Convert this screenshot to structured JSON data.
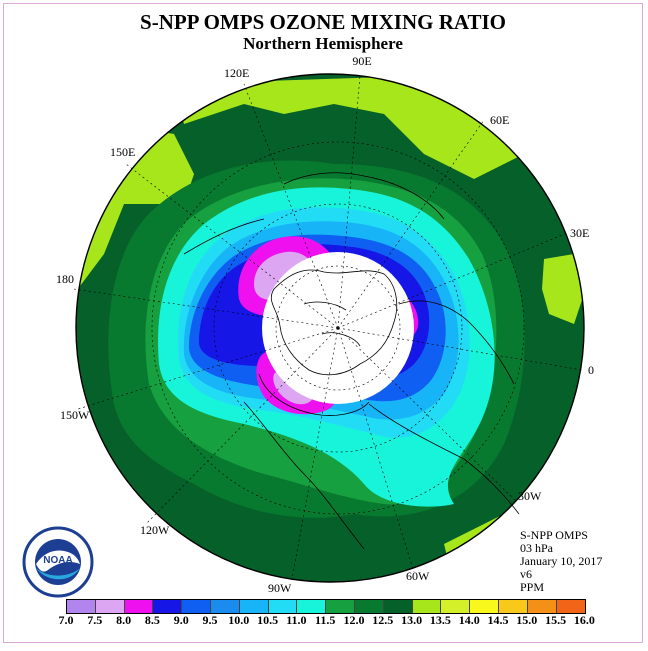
{
  "title": "S-NPP OMPS OZONE MIXING RATIO",
  "subtitle": "Northern Hemisphere",
  "longitude_labels": {
    "e90": "90E",
    "e60": "60E",
    "e30": "30E",
    "zero": "0",
    "w30": "30W",
    "w60": "60W",
    "w90": "90W",
    "w120": "120W",
    "w150": "150W",
    "d180": "180",
    "e150": "150E",
    "e120": "120E"
  },
  "info": {
    "instrument": "S-NPP OMPS",
    "level": "03 hPa",
    "date": "January 10, 2017",
    "version": "v6",
    "units": "PPM"
  },
  "logo": {
    "text": "NOAA",
    "icon": "noaa-logo"
  },
  "colorbar": {
    "ticks": [
      "7.0",
      "7.5",
      "8.0",
      "8.5",
      "9.0",
      "9.5",
      "10.0",
      "10.5",
      "11.0",
      "11.5",
      "12.0",
      "12.5",
      "13.0",
      "13.5",
      "14.0",
      "14.5",
      "15.0",
      "15.5",
      "16.0"
    ],
    "colors": [
      "#b284ee",
      "#dca6f2",
      "#ee10ee",
      "#1616e6",
      "#0f5ff2",
      "#1a8cf0",
      "#18b4f8",
      "#22dcf6",
      "#18f4da",
      "#16a040",
      "#087a30",
      "#05602a",
      "#a8e61c",
      "#d4f028",
      "#f8f81c",
      "#f8c81a",
      "#f49018",
      "#f26418",
      "#f01818",
      "#8a5030"
    ]
  },
  "map": {
    "projection": "north-polar-stereographic",
    "no_data_region": "polar night (white)",
    "fill_colors": {
      "lime": "#a8e61c",
      "dark_green": "#05602a",
      "green": "#087a30",
      "mid_green": "#16a040",
      "aqua": "#18f4da",
      "cyan": "#22dcf6",
      "light_blue": "#18b4f8",
      "blue": "#0f5ff2",
      "deep_blue": "#1616e6",
      "magenta": "#ee10ee",
      "lavender": "#dca6f2",
      "white": "#ffffff"
    }
  }
}
